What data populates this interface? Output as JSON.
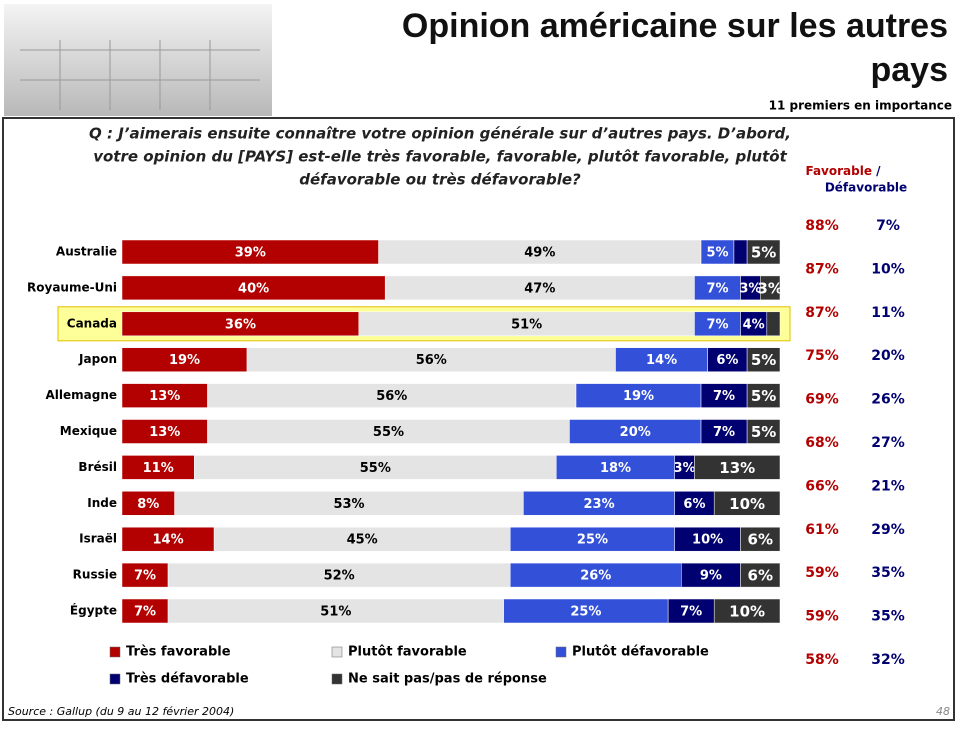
{
  "header": {
    "title": [
      "Opinion américaine sur les autres",
      "pays"
    ],
    "subtitle": "11 premiers en importance"
  },
  "question": [
    "Q : J’aimerais ensuite connaître votre opinion générale sur d’autres pays. D’abord,",
    "votre opinion du [PAYS] est-elle très favorable, favorable, plutôt favorable, plutôt",
    "défavorable ou très défavorable?"
  ],
  "chart_data": {
    "type": "stacked-bar",
    "orientation": "horizontal",
    "categories": [
      "Australie",
      "Royaume-Uni",
      "Canada",
      "Japon",
      "Allemagne",
      "Mexique",
      "Brésil",
      "Inde",
      "Israël",
      "Russie",
      "Égypte"
    ],
    "highlight": "Canada",
    "xlim": [
      0,
      100
    ],
    "series": [
      {
        "name": "Très favorable",
        "color": "#b30000",
        "label_color": "#ffffff",
        "values": [
          39,
          40,
          36,
          19,
          13,
          13,
          11,
          8,
          14,
          7,
          7
        ],
        "value_labels": [
          "39%",
          "40%",
          "36%",
          "19%",
          "13%",
          "13%",
          "11%",
          "8%",
          "14%",
          "7%",
          "7%"
        ]
      },
      {
        "name": "Plutôt favorable",
        "color": "#e4e4e4",
        "label_color": "#000000",
        "values": [
          49,
          47,
          51,
          56,
          56,
          55,
          55,
          53,
          45,
          52,
          51
        ],
        "value_labels": [
          "49%",
          "47%",
          "51%",
          "56%",
          "56%",
          "55%",
          "55%",
          "53%",
          "45%",
          "52%",
          "51%"
        ]
      },
      {
        "name": "Plutôt défavorable",
        "color": "#3350d8",
        "label_color": "#ffffff",
        "values": [
          5,
          7,
          7,
          14,
          19,
          20,
          18,
          23,
          25,
          26,
          25
        ],
        "value_labels": [
          "5%",
          "7%",
          "7%",
          "14%",
          "19%",
          "20%",
          "18%",
          "23%",
          "25%",
          "26%",
          "25%"
        ]
      },
      {
        "name": "Très défavorable",
        "color": "#000070",
        "label_color": "#ffffff",
        "values": [
          2,
          3,
          4,
          6,
          7,
          7,
          3,
          6,
          10,
          9,
          7
        ],
        "value_labels": [
          null,
          "3%",
          "4%",
          "6%",
          "7%",
          "7%",
          "3%",
          "6%",
          "10%",
          "9%",
          "7%"
        ]
      },
      {
        "name": "Ne sait pas/pas de réponse",
        "color": "#333333",
        "label_color": "#ffffff",
        "values": [
          5,
          3,
          2,
          5,
          5,
          5,
          13,
          10,
          6,
          6,
          10
        ],
        "value_labels": [
          "5%",
          "3%",
          null,
          "5%",
          "5%",
          "5%",
          "13%",
          "10%",
          "6%",
          "6%",
          "10%"
        ]
      }
    ]
  },
  "summary": {
    "header": [
      "Favorable",
      "/",
      "Défavorable"
    ],
    "rows": [
      [
        "88%",
        "7%"
      ],
      [
        "87%",
        "10%"
      ],
      [
        "87%",
        "11%"
      ],
      [
        "75%",
        "20%"
      ],
      [
        "69%",
        "26%"
      ],
      [
        "68%",
        "27%"
      ],
      [
        "66%",
        "21%"
      ],
      [
        "61%",
        "29%"
      ],
      [
        "59%",
        "35%"
      ],
      [
        "59%",
        "35%"
      ],
      [
        "58%",
        "32%"
      ]
    ]
  },
  "footer": {
    "source": "Source : Gallup (du 9 au 12 février 2004)",
    "page": "48"
  }
}
